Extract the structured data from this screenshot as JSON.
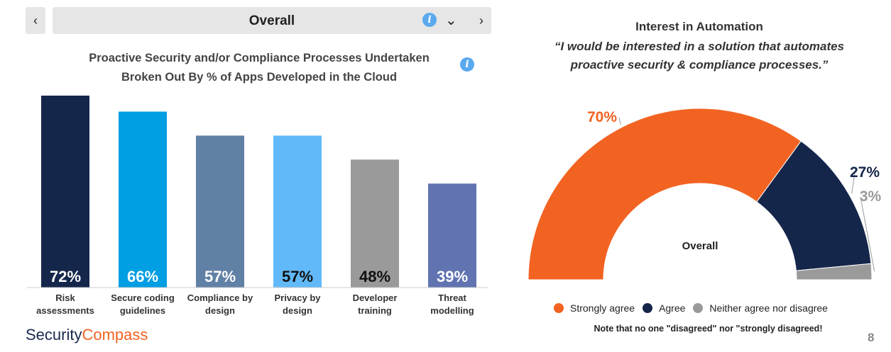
{
  "nav": {
    "prev_symbol": "‹",
    "next_symbol": "›",
    "selector_label": "Overall",
    "info_symbol": "i",
    "dropdown_symbol": "⌄"
  },
  "logo": {
    "part1": "Security",
    "part2": "Compass"
  },
  "page_number": "8",
  "chart_data": [
    {
      "type": "bar",
      "title": "Proactive Security and/or Compliance Processes Undertaken",
      "subtitle": "Broken Out By % of Apps Developed in the Cloud",
      "categories": [
        "Risk assessments",
        "Secure coding guidelines",
        "Compliance by design",
        "Privacy by design",
        "Developer training",
        "Threat modelling"
      ],
      "category_lines": [
        [
          "Risk",
          "assessments"
        ],
        [
          "Secure coding",
          "guidelines"
        ],
        [
          "Compliance by",
          "design"
        ],
        [
          "Privacy by",
          "design"
        ],
        [
          "Developer",
          "training"
        ],
        [
          "Threat",
          "modelling"
        ]
      ],
      "values": [
        72,
        66,
        57,
        57,
        48,
        39
      ],
      "data_labels": [
        "72%",
        "66%",
        "57%",
        "57%",
        "48%",
        "39%"
      ],
      "colors": [
        "#15264b",
        "#009ee3",
        "#6180a5",
        "#62b9f9",
        "#9a9a9a",
        "#6173b1"
      ],
      "label_colors": [
        "#ffffff",
        "#ffffff",
        "#ffffff",
        "#111111",
        "#111111",
        "#ffffff"
      ],
      "ylim": [
        0,
        100
      ],
      "grid": false,
      "xlabel": "",
      "ylabel": ""
    },
    {
      "type": "pie",
      "variant": "half-donut",
      "title": "Interest in Automation",
      "subtitle_lines": [
        "“I would be interested in a solution that automates",
        "proactive security & compliance processes.”"
      ],
      "center_label": "Overall",
      "categories": [
        "Strongly agree",
        "Agree",
        "Neither agree nor disagree"
      ],
      "values": [
        70,
        27,
        3
      ],
      "data_labels": [
        "70%",
        "27%",
        "3%"
      ],
      "colors": [
        "#f26322",
        "#15264b",
        "#9a9a9a"
      ],
      "legend_position": "bottom",
      "note": "Note that no one \"disagreed\" nor \"strongly disagreed!"
    }
  ]
}
